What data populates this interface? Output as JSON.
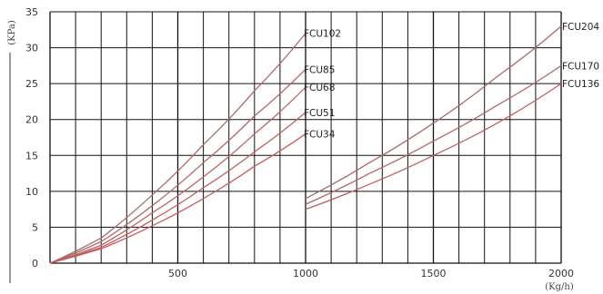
{
  "chart_data": {
    "type": "line",
    "title": "",
    "ylabel": "(KPa)",
    "xlabel": "(Kg/h)",
    "xlim": [
      0,
      2000
    ],
    "ylim": [
      0,
      35
    ],
    "x_ticks": [
      "500",
      "1000",
      "1500",
      "2000"
    ],
    "y_ticks": [
      "0",
      "5",
      "10",
      "15",
      "20",
      "25",
      "30",
      "35"
    ],
    "grid": true,
    "series": [
      {
        "name": "FCU102",
        "color": "#a86a68",
        "x": [
          0,
          200,
          400,
          600,
          800,
          1000
        ],
        "y": [
          0,
          3.5,
          9.5,
          16.5,
          24,
          32
        ]
      },
      {
        "name": "FCU85",
        "color": "#b06766",
        "x": [
          0,
          200,
          400,
          600,
          800,
          1000
        ],
        "y": [
          0,
          3,
          8,
          14,
          20.5,
          27
        ]
      },
      {
        "name": "FCU68",
        "color": "#b86462",
        "x": [
          0,
          200,
          400,
          600,
          800,
          1000
        ],
        "y": [
          0,
          2.5,
          7,
          12,
          18,
          24.5
        ]
      },
      {
        "name": "FCU51",
        "color": "#c0605e",
        "x": [
          0,
          200,
          400,
          600,
          800,
          1000
        ],
        "y": [
          0,
          2.2,
          6,
          10.5,
          15.5,
          21
        ]
      },
      {
        "name": "FCU34",
        "color": "#c85c5a",
        "x": [
          0,
          200,
          400,
          600,
          800,
          1000
        ],
        "y": [
          0,
          2,
          5.2,
          9,
          13.5,
          18
        ]
      },
      {
        "name": "FCU204",
        "color": "#a86a68",
        "x": [
          1000,
          1250,
          1500,
          1750,
          2000
        ],
        "y": [
          9,
          14,
          19.5,
          26,
          33
        ]
      },
      {
        "name": "FCU170",
        "color": "#b06766",
        "x": [
          1000,
          1250,
          1500,
          1750,
          2000
        ],
        "y": [
          8.2,
          12.5,
          17,
          22,
          27.5
        ]
      },
      {
        "name": "FCU136",
        "color": "#c0605e",
        "x": [
          1000,
          1250,
          1500,
          1750,
          2000
        ],
        "y": [
          7.5,
          11,
          15,
          19.5,
          25
        ]
      }
    ],
    "series_labels": [
      {
        "text": "FCU102",
        "series": "FCU102"
      },
      {
        "text": "FCU85",
        "series": "FCU85"
      },
      {
        "text": "FCU68",
        "series": "FCU68"
      },
      {
        "text": "FCU51",
        "series": "FCU51"
      },
      {
        "text": "FCU34",
        "series": "FCU34"
      },
      {
        "text": "FCU204",
        "series": "FCU204"
      },
      {
        "text": "FCU170",
        "series": "FCU170"
      },
      {
        "text": "FCU136",
        "series": "FCU136"
      }
    ]
  }
}
